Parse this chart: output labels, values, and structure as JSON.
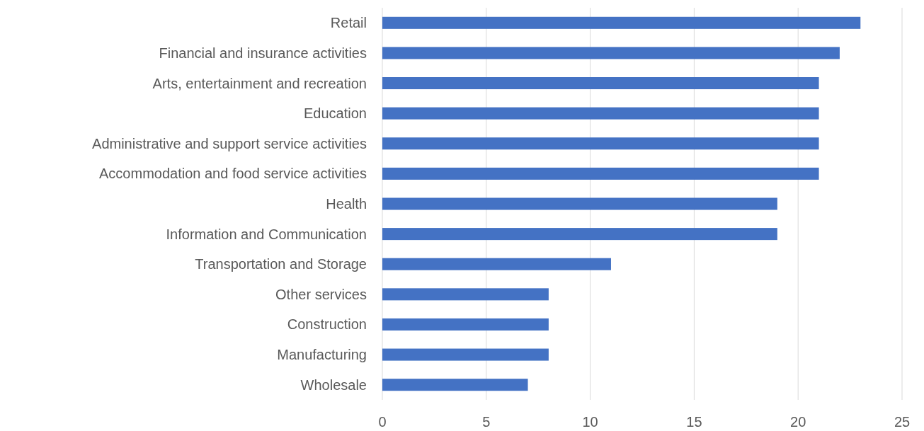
{
  "chart_data": {
    "type": "bar",
    "orientation": "horizontal",
    "categories": [
      "Retail",
      "Financial and insurance activities",
      "Arts, entertainment and recreation",
      "Education",
      "Administrative and support service activities",
      "Accommodation and food service activities",
      "Health",
      "Information and Communication",
      "Transportation and Storage",
      "Other services",
      "Construction",
      "Manufacturing",
      "Wholesale"
    ],
    "values": [
      23,
      22,
      21,
      21,
      21,
      21,
      19,
      19,
      11,
      8,
      8,
      8,
      7
    ],
    "color": "#4472c4",
    "xlim": [
      0,
      25
    ],
    "xticks": [
      0,
      5,
      10,
      15,
      20,
      25
    ],
    "grid": "x"
  }
}
